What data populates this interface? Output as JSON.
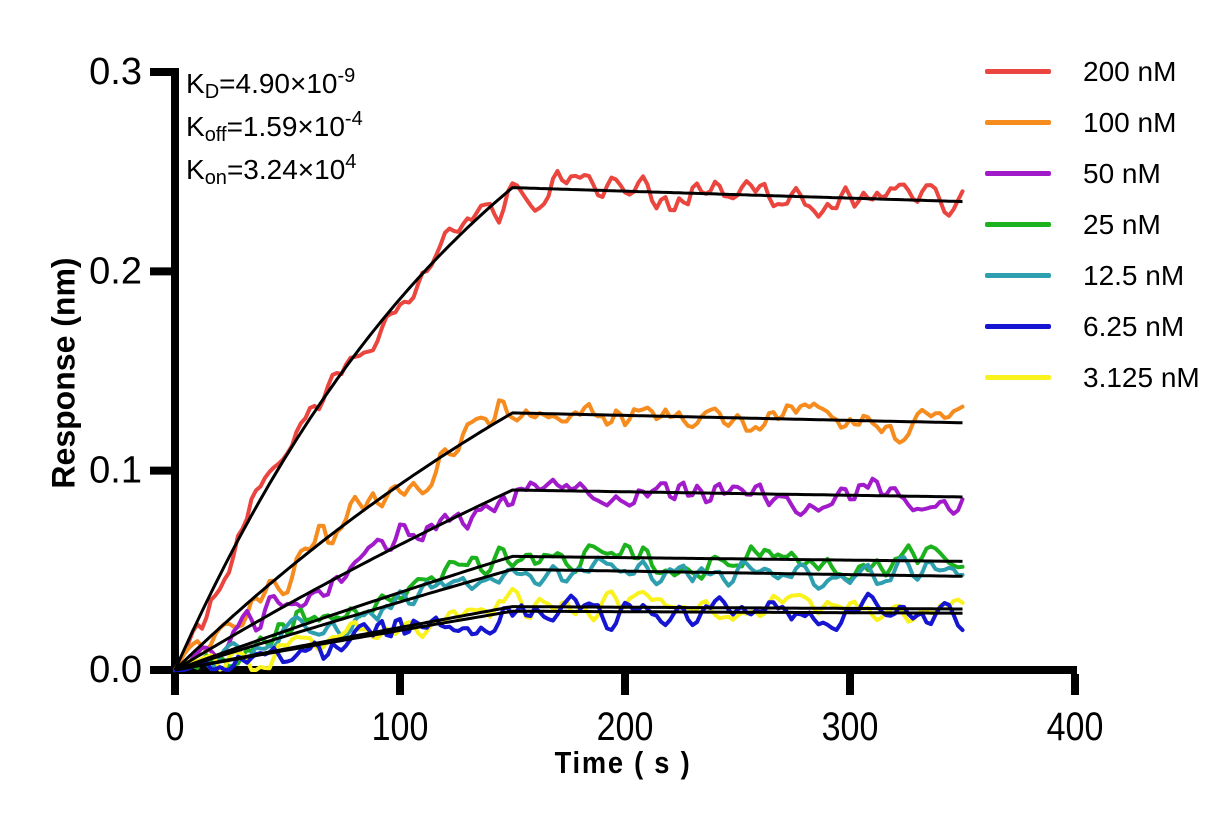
{
  "chart_data": {
    "type": "line",
    "title": "",
    "xlabel": "Time ( s )",
    "ylabel": "Response (nm)",
    "xlim": [
      0,
      400
    ],
    "ylim": [
      0,
      0.3
    ],
    "x_ticks": [
      0,
      100,
      200,
      300,
      400
    ],
    "x_tick_labels": [
      "0",
      "100",
      "200",
      "300",
      "400"
    ],
    "y_ticks": [
      0,
      0.1,
      0.2,
      0.3
    ],
    "y_tick_labels": [
      "0.0",
      "0.1",
      "0.2",
      "0.3"
    ],
    "grid": false,
    "legend_position": "right-outside-top",
    "phases": {
      "association_s": [
        0,
        150
      ],
      "dissociation_s": [
        150,
        350
      ]
    },
    "fit_line_color": "#000000",
    "series": [
      {
        "label": "200 nM",
        "conc_nM": 200,
        "color": "#EA453E",
        "kobs_per_s": 0.00664,
        "response_peak_nm": 0.242,
        "response_end_nm": 0.235,
        "noise_nm": 0.0058
      },
      {
        "label": "100 nM",
        "conc_nM": 100,
        "color": "#F68B1E",
        "kobs_per_s": 0.0034,
        "response_peak_nm": 0.129,
        "response_end_nm": 0.124,
        "noise_nm": 0.0055
      },
      {
        "label": "50 nM",
        "conc_nM": 50,
        "color": "#A21BCB",
        "kobs_per_s": 0.00178,
        "response_peak_nm": 0.0903,
        "response_end_nm": 0.0868,
        "noise_nm": 0.0055
      },
      {
        "label": "25 nM",
        "conc_nM": 25,
        "color": "#1CB21D",
        "kobs_per_s": 0.00097,
        "response_peak_nm": 0.057,
        "response_end_nm": 0.0545,
        "noise_nm": 0.005
      },
      {
        "label": "12.5 nM",
        "conc_nM": 12.5,
        "color": "#2E9FAE",
        "kobs_per_s": 0.000564,
        "response_peak_nm": 0.0505,
        "response_end_nm": 0.047,
        "noise_nm": 0.0046
      },
      {
        "label": "6.25 nM",
        "conc_nM": 6.25,
        "color": "#1616D2",
        "kobs_per_s": 0.000362,
        "response_peak_nm": 0.0295,
        "response_end_nm": 0.0285,
        "noise_nm": 0.005
      },
      {
        "label": "3.125 nM",
        "conc_nM": 3.125,
        "color": "#F9F21D",
        "kobs_per_s": 0.00026,
        "response_peak_nm": 0.0318,
        "response_end_nm": 0.0306,
        "noise_nm": 0.0045
      }
    ]
  },
  "annotations": [
    {
      "pre": "K",
      "sub": "D",
      "mid": "=4.90×10",
      "sup": "-9"
    },
    {
      "pre": "K",
      "sub": "off",
      "mid": "=1.59×10",
      "sup": "-4"
    },
    {
      "pre": "K",
      "sub": "on",
      "mid": "=3.24×10",
      "sup": "4"
    }
  ]
}
